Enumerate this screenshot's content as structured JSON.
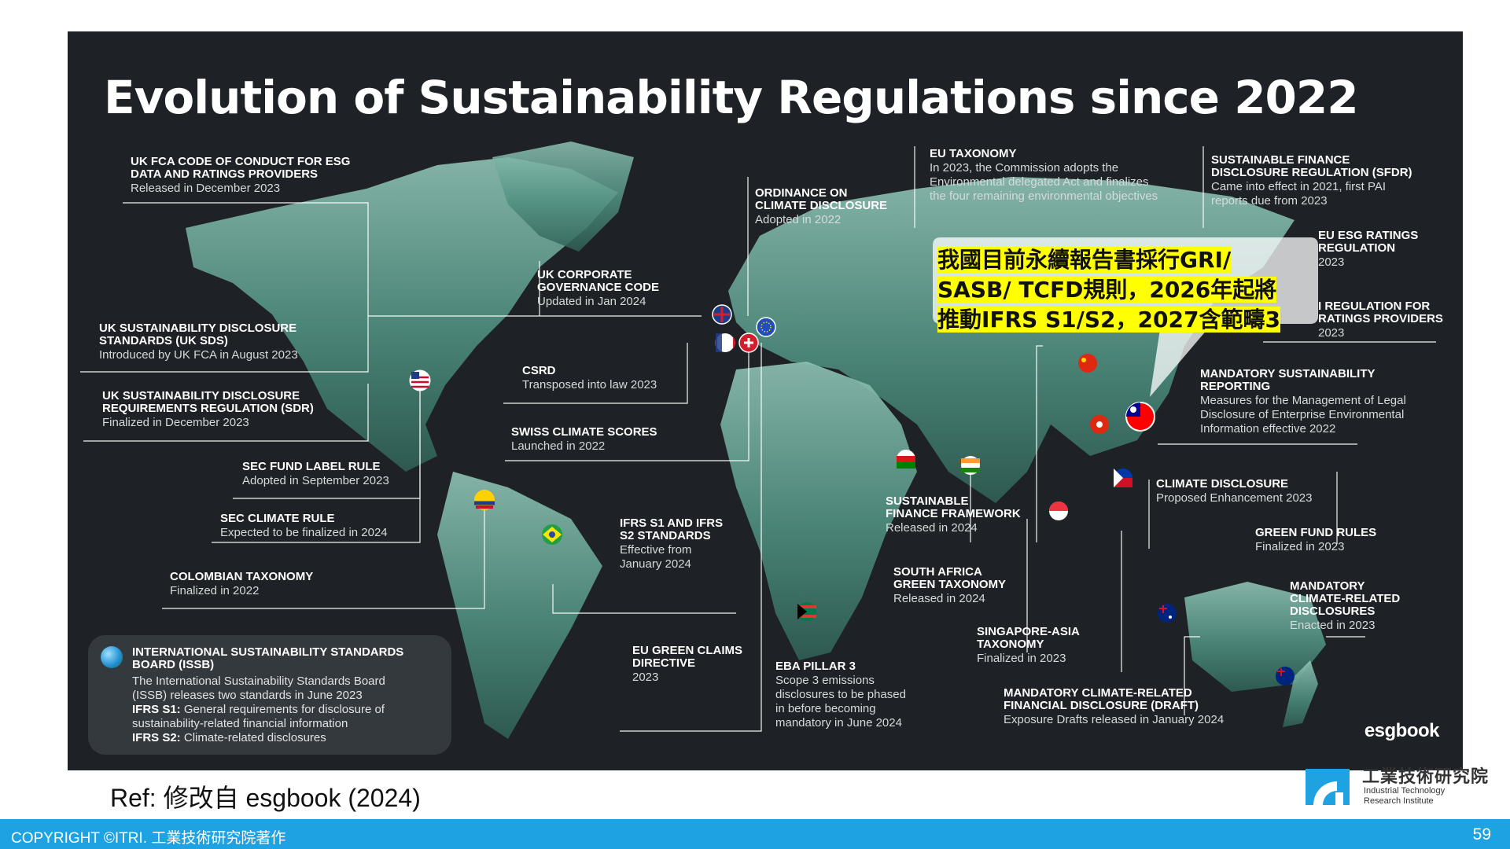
{
  "title": "Evolution of Sustainability Regulations since 2022",
  "labels": [
    {
      "id": "uk-fca-code",
      "heading": "UK FCA CODE OF CONDUCT FOR ESG\nDATA AND RATINGS PROVIDERS",
      "detail": "Released in December 2023"
    },
    {
      "id": "ordinance-climate",
      "heading": "ORDINANCE ON\nCLIMATE DISCLOSURE",
      "detail": "Adopted in 2022"
    },
    {
      "id": "eu-taxonomy",
      "heading": "EU TAXONOMY",
      "detail": "In 2023, the Commission adopts the\nEnvironmental delegated Act and finalizes\nthe four remaining environmental objectives"
    },
    {
      "id": "sfdr",
      "heading": "SUSTAINABLE FINANCE\nDISCLOSURE REGULATION (SFDR)",
      "detail": "Came into effect in 2021, first PAI\nreports due from 2023"
    },
    {
      "id": "eu-esg-ratings",
      "heading": "EU ESG RATINGS\nREGULATION",
      "detail": "2023"
    },
    {
      "id": "regulation-ratings-providers",
      "heading": "I REGULATION FOR\nRATINGS PROVIDERS",
      "detail": "2023"
    },
    {
      "id": "uk-corp-gov",
      "heading": "UK CORPORATE\nGOVERNANCE CODE",
      "detail": "Updated in Jan 2024"
    },
    {
      "id": "uk-sds",
      "heading": "UK SUSTAINABILITY DISCLOSURE\nSTANDARDS (UK SDS)",
      "detail": "Introduced by UK FCA in August 2023"
    },
    {
      "id": "csrd",
      "heading": "CSRD",
      "detail": "Transposed into law 2023"
    },
    {
      "id": "uk-sdr",
      "heading": "UK SUSTAINABILITY DISCLOSURE\nREQUIREMENTS REGULATION (SDR)",
      "detail": "Finalized in December 2023"
    },
    {
      "id": "swiss-climate",
      "heading": "SWISS CLIMATE SCORES",
      "detail": "Launched in 2022"
    },
    {
      "id": "mandatory-sust-reporting",
      "heading": "MANDATORY SUSTAINABILITY\nREPORTING",
      "detail": "Measures for the Management of Legal\nDisclosure of Enterprise Environmental\nInformation effective 2022"
    },
    {
      "id": "sec-fund-label",
      "heading": "SEC FUND LABEL RULE",
      "detail": "Adopted in September 2023"
    },
    {
      "id": "climate-disclosure",
      "heading": "CLIMATE DISCLOSURE",
      "detail": "Proposed Enhancement 2023"
    },
    {
      "id": "sustainable-finance-fw",
      "heading": "SUSTAINABLE\nFINANCE FRAMEWORK",
      "detail": "Released in 2024"
    },
    {
      "id": "sec-climate",
      "heading": "SEC CLIMATE RULE",
      "detail": "Expected to be finalized in 2024"
    },
    {
      "id": "ifrs-standards",
      "heading": "IFRS S1 AND IFRS\nS2 STANDARDS",
      "detail": "Effective from\nJanuary 2024"
    },
    {
      "id": "green-fund-rules",
      "heading": "GREEN FUND RULES",
      "detail": "Finalized in 2023"
    },
    {
      "id": "south-africa-tax",
      "heading": "SOUTH AFRICA\nGREEN TAXONOMY",
      "detail": "Released in 2024"
    },
    {
      "id": "colombian-tax",
      "heading": "COLOMBIAN TAXONOMY",
      "detail": "Finalized in 2022"
    },
    {
      "id": "mandatory-climate-disc",
      "heading": "MANDATORY\nCLIMATE-RELATED\nDISCLOSURES",
      "detail": "Enacted in 2023"
    },
    {
      "id": "singapore-asia",
      "heading": "SINGAPORE-ASIA\nTAXONOMY",
      "detail": "Finalized in 2023"
    },
    {
      "id": "eu-green-claims",
      "heading": "EU GREEN CLAIMS\nDIRECTIVE",
      "detail": "2023"
    },
    {
      "id": "eba-pillar",
      "heading": "EBA PILLAR 3",
      "detail": "Scope 3 emissions\ndisclosures to be phased\nin before becoming\nmandatory in June 2024"
    },
    {
      "id": "mandatory-financial-draft",
      "heading": "MANDATORY CLIMATE-RELATED\nFINANCIAL DISCLOSURE (DRAFT)",
      "detail": "Exposure Drafts released in January 2024"
    }
  ],
  "issb": {
    "heading": "INTERNATIONAL SUSTAINABILITY STANDARDS\nBOARD (ISSB)",
    "line1": "The International Sustainability Standards Board\n(ISSB) releases two standards in June 2023",
    "s1_key": "IFRS S1:",
    "s1_text": " General requirements for disclosure of\nsustainability-related financial information",
    "s2_key": "IFRS S2:",
    "s2_text": " Climate-related disclosures"
  },
  "callout": {
    "line1": "我國目前永續報告書採行GRI/",
    "line2": "SASB/ TCFD規則，2026年起將",
    "line3": "推動IFRS S1/S2，2027含範疇3"
  },
  "brand": "esgbook",
  "ref": "Ref: 修改自 esgbook (2024)",
  "logo": {
    "zh": "工業技術研究院",
    "en": "Industrial Technology\nResearch Institute"
  },
  "footer": {
    "copyright": "COPYRIGHT ©ITRI. 工業技術研究院著作",
    "page": "59"
  },
  "colors": {
    "panel": "#1e2125",
    "land": "#4f8f80",
    "callout": "#ffff00",
    "footer": "#1ea2e1"
  }
}
